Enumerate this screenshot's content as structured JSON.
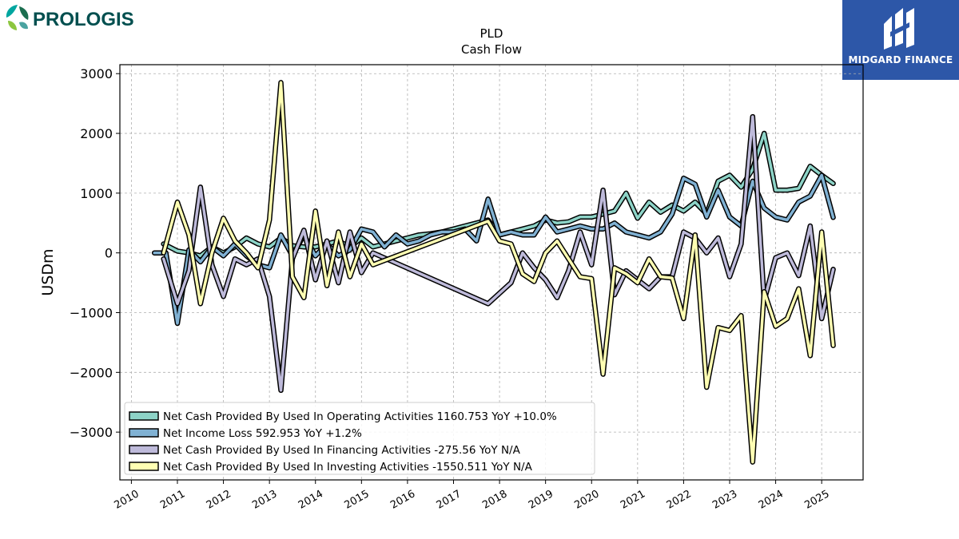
{
  "logos": {
    "left_text": "PROLOGIS",
    "right_text": "MIDGARD FINANCE"
  },
  "chart_data": {
    "type": "line",
    "title": "PLD",
    "subtitle": "Cash Flow",
    "xlabel": "",
    "ylabel": "USDm",
    "xlim": [
      2009.75,
      2025.9
    ],
    "ylim": [
      -3800,
      3150
    ],
    "yticks": [
      -3000,
      -2000,
      -1000,
      0,
      1000,
      2000,
      3000
    ],
    "xticks": [
      2010,
      2011,
      2012,
      2013,
      2014,
      2015,
      2016,
      2017,
      2018,
      2019,
      2020,
      2021,
      2022,
      2023,
      2024,
      2025
    ],
    "grid": true,
    "legend_position": "lower-left",
    "series": [
      {
        "name": "Net Cash Provided By Used In Operating Activities",
        "legend": "Net Cash Provided By Used In Operating Activities  1160.753 YoY +10.0%",
        "color": "#8dd3c7",
        "x": [
          2010.7,
          2011.0,
          2011.25,
          2011.5,
          2011.75,
          2012.0,
          2012.25,
          2012.5,
          2012.75,
          2013.0,
          2013.25,
          2013.5,
          2013.75,
          2014.0,
          2014.25,
          2014.5,
          2014.75,
          2015.0,
          2015.25,
          2015.5,
          2015.75,
          2016.0,
          2016.25,
          2016.5,
          2016.75,
          2017.0,
          2017.25,
          2017.5,
          2017.75,
          2018.0,
          2018.25,
          2018.5,
          2018.75,
          2019.0,
          2019.25,
          2019.5,
          2019.75,
          2020.0,
          2020.25,
          2020.5,
          2020.75,
          2021.0,
          2021.25,
          2021.5,
          2021.75,
          2022.0,
          2022.25,
          2022.5,
          2022.75,
          2023.0,
          2023.25,
          2023.5,
          2023.75,
          2024.0,
          2024.25,
          2024.5,
          2024.75,
          2025.0,
          2025.25
        ],
        "y": [
          150,
          30,
          0,
          -50,
          100,
          0,
          100,
          250,
          150,
          100,
          250,
          120,
          100,
          100,
          150,
          200,
          100,
          250,
          100,
          150,
          200,
          250,
          300,
          320,
          350,
          400,
          450,
          500,
          550,
          300,
          350,
          400,
          450,
          550,
          500,
          520,
          600,
          600,
          650,
          700,
          1000,
          580,
          850,
          680,
          800,
          700,
          850,
          650,
          1200,
          1300,
          1100,
          1400,
          2000,
          1050,
          1050,
          1080,
          1450,
          1300,
          1160.753
        ]
      },
      {
        "name": "Net Income Loss",
        "legend": "Net Income Loss  592.953 YoY +1.2%",
        "color": "#80b1d3",
        "x": [
          2010.5,
          2010.75,
          2011.0,
          2011.25,
          2011.5,
          2011.75,
          2012.0,
          2012.25,
          2012.5,
          2012.75,
          2013.0,
          2013.25,
          2013.5,
          2013.75,
          2014.0,
          2014.25,
          2014.5,
          2014.75,
          2015.0,
          2015.25,
          2015.5,
          2015.75,
          2016.0,
          2016.25,
          2016.5,
          2016.75,
          2017.0,
          2017.25,
          2017.5,
          2017.75,
          2018.0,
          2018.25,
          2018.5,
          2018.75,
          2019.0,
          2019.25,
          2019.5,
          2019.75,
          2020.0,
          2020.25,
          2020.5,
          2020.75,
          2021.0,
          2021.25,
          2021.5,
          2021.75,
          2022.0,
          2022.25,
          2022.5,
          2022.75,
          2023.0,
          2023.25,
          2023.5,
          2023.75,
          2024.0,
          2024.25,
          2024.5,
          2024.75,
          2025.0,
          2025.25
        ],
        "y": [
          0,
          0,
          -1180,
          50,
          -150,
          100,
          -50,
          150,
          -50,
          -200,
          -250,
          300,
          -50,
          300,
          -50,
          150,
          -50,
          50,
          400,
          350,
          100,
          300,
          150,
          200,
          300,
          350,
          350,
          400,
          200,
          900,
          300,
          350,
          300,
          300,
          600,
          350,
          400,
          450,
          400,
          400,
          500,
          350,
          300,
          250,
          350,
          650,
          1250,
          1150,
          600,
          1050,
          600,
          450,
          1200,
          750,
          600,
          550,
          850,
          950,
          1300,
          592.953
        ]
      },
      {
        "name": "Net Cash Provided By Used In Financing Activities",
        "legend": "Net Cash Provided By Used In Financing Activities  -275.56 YoY N/A",
        "color": "#bebada",
        "x": [
          2010.7,
          2011.0,
          2011.25,
          2011.5,
          2011.75,
          2012.0,
          2012.25,
          2012.5,
          2012.75,
          2013.0,
          2013.25,
          2013.5,
          2013.75,
          2014.0,
          2014.25,
          2014.5,
          2014.75,
          2015.0,
          2015.25,
          2017.75,
          2018.25,
          2018.5,
          2018.75,
          2019.0,
          2019.25,
          2019.5,
          2019.75,
          2020.0,
          2020.25,
          2020.5,
          2020.75,
          2021.0,
          2021.25,
          2021.5,
          2021.75,
          2022.0,
          2022.25,
          2022.5,
          2022.75,
          2023.0,
          2023.25,
          2023.5,
          2023.75,
          2024.0,
          2024.25,
          2024.5,
          2024.75,
          2025.0,
          2025.25
        ],
        "y": [
          -100,
          -850,
          -300,
          1100,
          -200,
          -730,
          -100,
          -200,
          -100,
          -730,
          -2300,
          -100,
          380,
          -450,
          200,
          -500,
          350,
          -330,
          0,
          -850,
          -500,
          0,
          -250,
          -450,
          -750,
          -300,
          350,
          -200,
          1050,
          -700,
          -300,
          -450,
          -600,
          -400,
          -400,
          350,
          250,
          0,
          250,
          -400,
          150,
          2280,
          -800,
          -80,
          0,
          -380,
          450,
          -1100,
          -275.56
        ]
      },
      {
        "name": "Net Cash Provided By Used In Investing Activities",
        "legend": "Net Cash Provided By Used In Investing Activities  -1550.511 YoY N/A",
        "color": "#ffffb3",
        "x": [
          2010.7,
          2011.0,
          2011.25,
          2011.5,
          2011.75,
          2012.0,
          2012.25,
          2012.5,
          2012.75,
          2013.0,
          2013.25,
          2013.5,
          2013.75,
          2014.0,
          2014.25,
          2014.5,
          2014.75,
          2015.0,
          2015.25,
          2017.75,
          2018.0,
          2018.25,
          2018.5,
          2018.75,
          2019.0,
          2019.25,
          2019.5,
          2019.75,
          2020.0,
          2020.25,
          2020.5,
          2020.75,
          2021.0,
          2021.25,
          2021.5,
          2021.75,
          2022.0,
          2022.25,
          2022.5,
          2022.75,
          2023.0,
          2023.25,
          2023.5,
          2023.75,
          2024.0,
          2024.25,
          2024.5,
          2024.75,
          2025.0,
          2025.25
        ],
        "y": [
          0,
          850,
          300,
          -850,
          0,
          580,
          200,
          0,
          -250,
          550,
          2850,
          -400,
          -750,
          700,
          -550,
          350,
          -400,
          150,
          -200,
          530,
          200,
          150,
          -350,
          -480,
          0,
          200,
          -100,
          -400,
          -430,
          -2030,
          -250,
          -350,
          -500,
          -100,
          -400,
          -420,
          -1100,
          300,
          -2250,
          -1250,
          -1300,
          -1050,
          -3500,
          -650,
          -1230,
          -1100,
          -600,
          -1720,
          350,
          -1550.511
        ]
      }
    ]
  }
}
